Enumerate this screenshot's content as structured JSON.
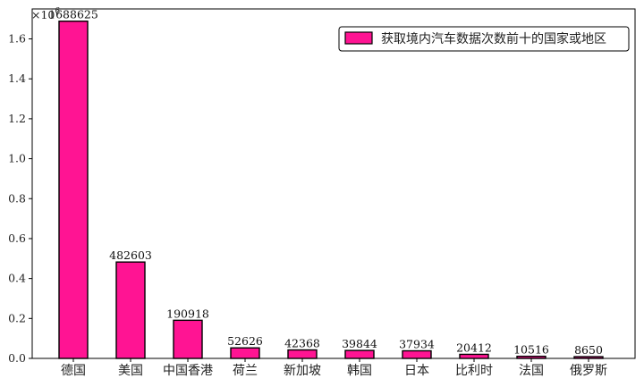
{
  "chart_data": {
    "type": "bar",
    "categories": [
      "德国",
      "美国",
      "中国香港",
      "荷兰",
      "新加坡",
      "韩国",
      "日本",
      "比利时",
      "法国",
      "俄罗斯"
    ],
    "series": [
      {
        "name": "获取境内汽车数据次数前十的国家或地区",
        "values": [
          1688625,
          482603,
          190918,
          52626,
          42368,
          39844,
          37934,
          20412,
          10516,
          8650
        ],
        "color": "#ff1493"
      }
    ],
    "value_labels": [
      "1688625",
      "482603",
      "190918",
      "52626",
      "42368",
      "39844",
      "37934",
      "20412",
      "10516",
      "8650"
    ],
    "ylim": [
      0,
      1750000
    ],
    "yticks": [
      0,
      200000,
      400000,
      600000,
      800000,
      1000000,
      1200000,
      1400000,
      1600000
    ],
    "ytick_labels": [
      "0.0",
      "0.2",
      "0.4",
      "0.6",
      "0.8",
      "1.0",
      "1.2",
      "1.4",
      "1.6"
    ],
    "y_multiplier_base": "×10",
    "y_multiplier_exp": "6",
    "legend_position": "top-right",
    "grid": false
  }
}
